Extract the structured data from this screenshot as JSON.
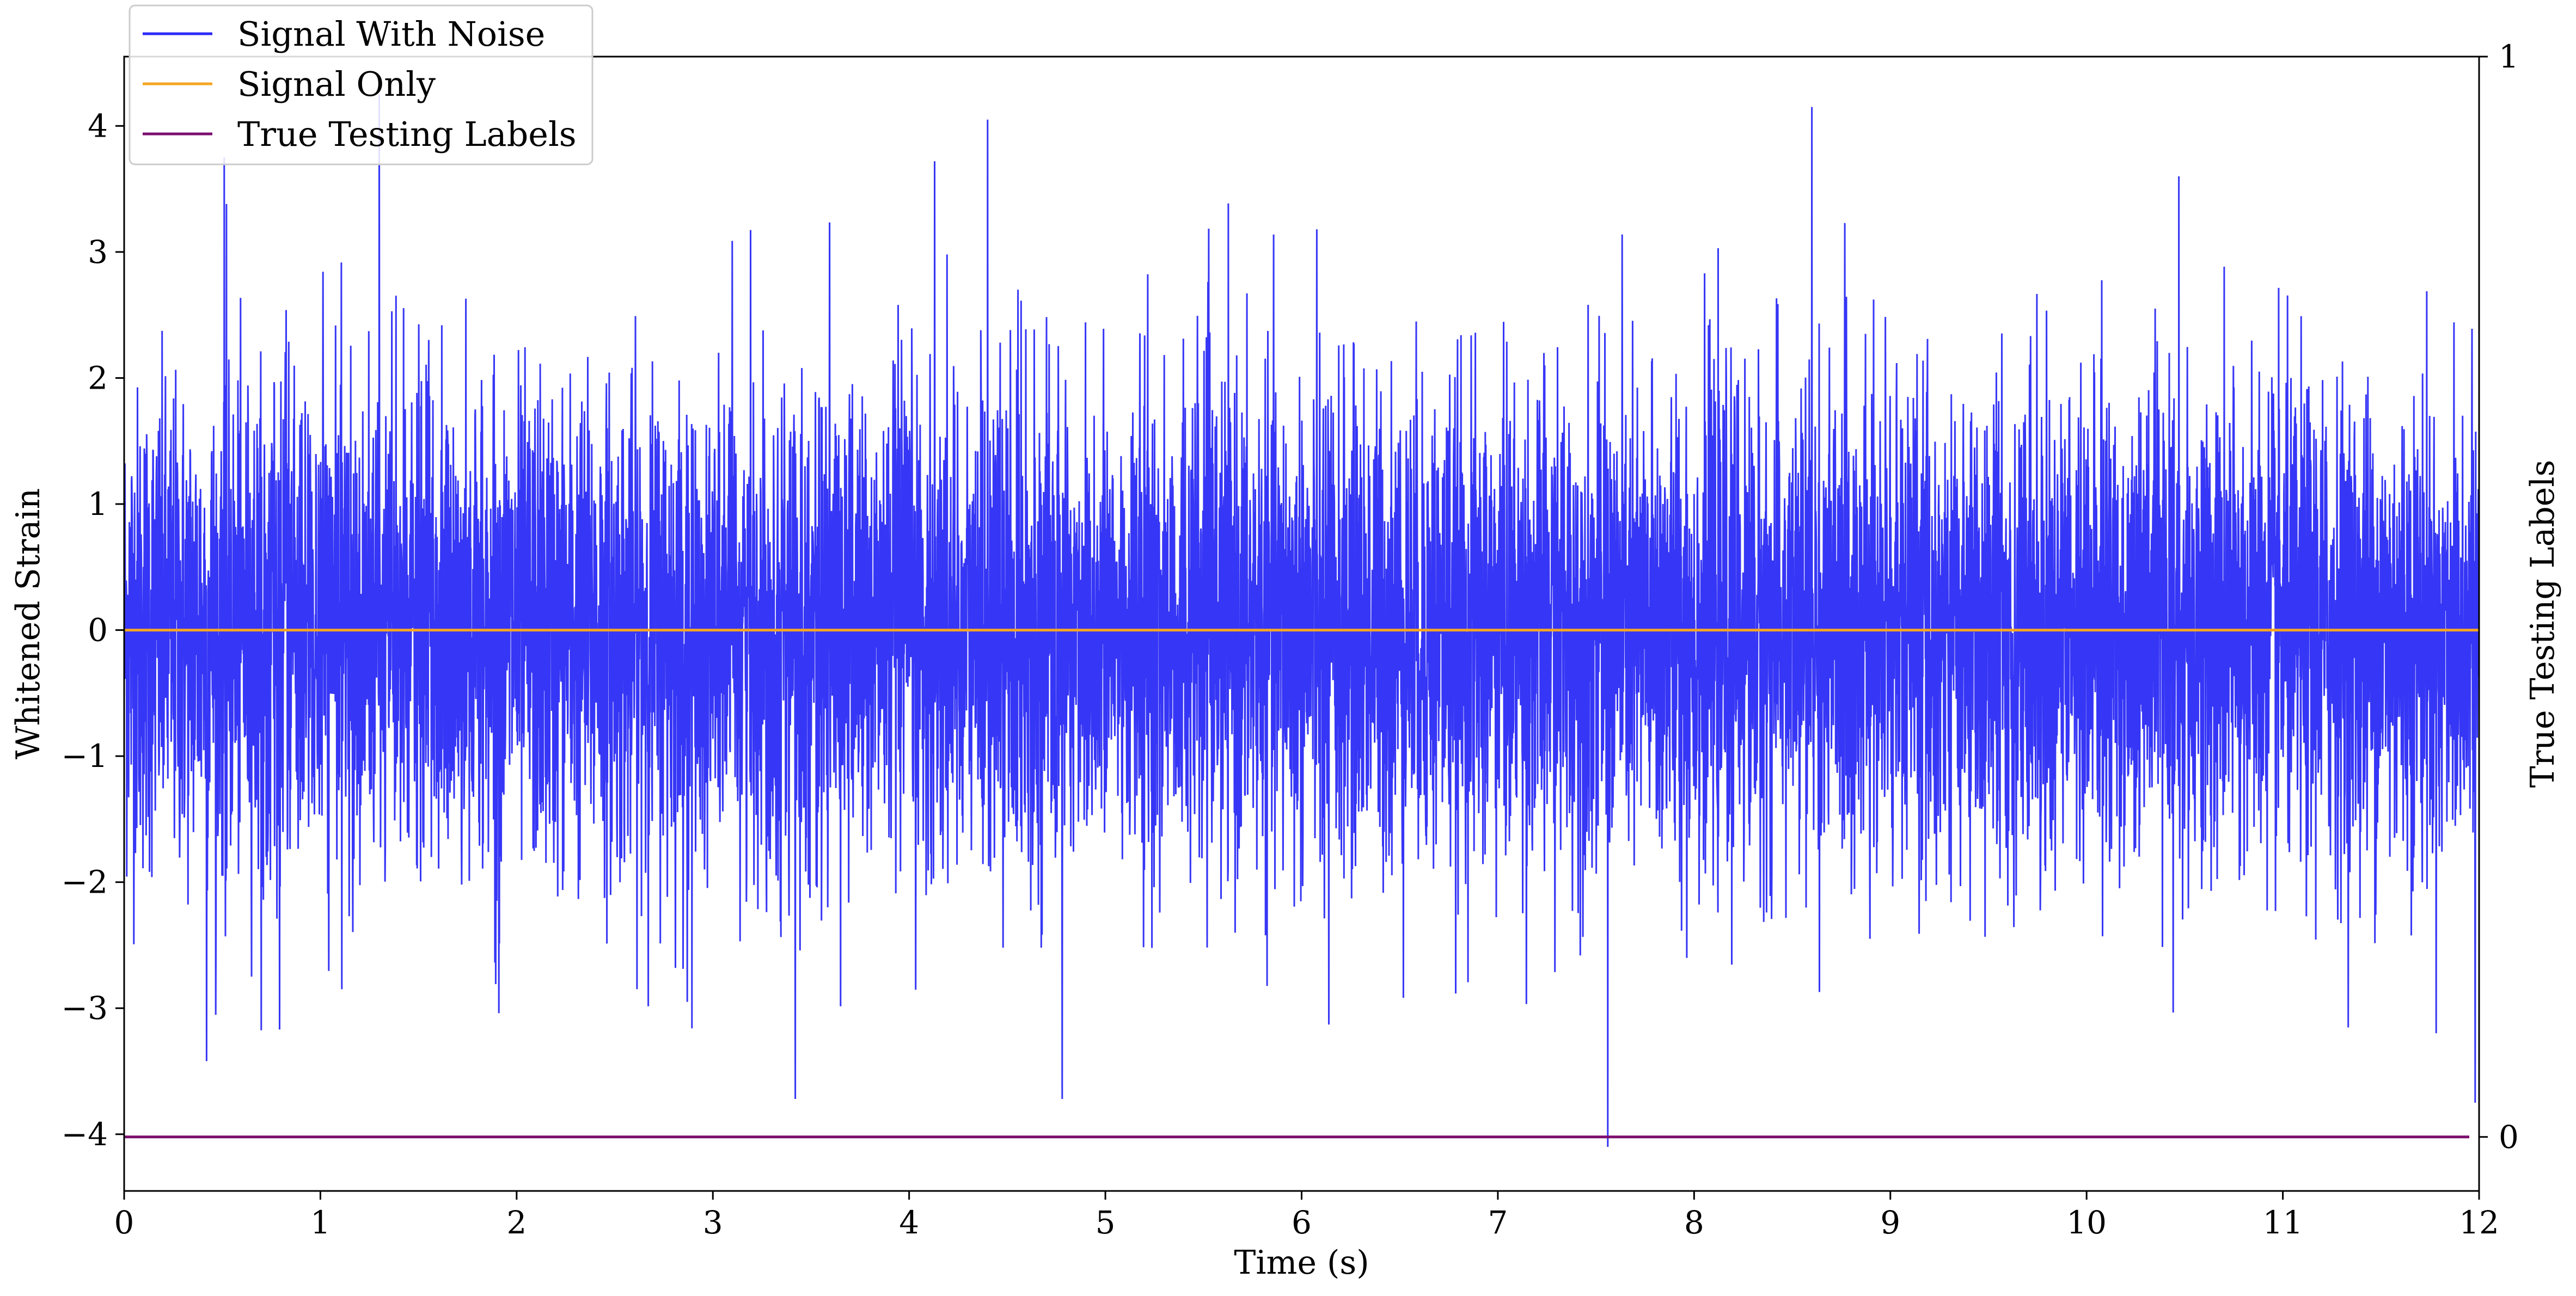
{
  "chart_data": {
    "type": "line",
    "title": "",
    "xlabel": "Time (s)",
    "ylabel": "Whitened Strain",
    "y2label": "True Testing Labels",
    "xlim": [
      0,
      12
    ],
    "ylim": [
      -4.45,
      4.55
    ],
    "y2lim": [
      -0.05,
      1.0
    ],
    "x_ticks": [
      0,
      1,
      2,
      3,
      4,
      5,
      6,
      7,
      8,
      9,
      10,
      11,
      12
    ],
    "y_ticks": [
      -4,
      -3,
      -2,
      -1,
      0,
      1,
      2,
      3,
      4
    ],
    "y_tick_labels": [
      "−4",
      "−3",
      "−2",
      "−1",
      "0",
      "1",
      "2",
      "3",
      "4"
    ],
    "y2_ticks": [
      0,
      1
    ],
    "grid": false,
    "legend_position": "top-left",
    "series": [
      {
        "name": "Signal With Noise",
        "color": "#2b2bf5",
        "axis": "left",
        "description_values": "dense noise approx. Gaussian, envelope roughly -3.5 to 4.1",
        "peaks": [
          {
            "x": 0.51,
            "y": 3.75
          },
          {
            "x": 1.3,
            "y": 4.25
          },
          {
            "x": 4.4,
            "y": 4.05
          },
          {
            "x": 8.6,
            "y": 4.15
          },
          {
            "x": 4.13,
            "y": 3.72
          },
          {
            "x": 10.47,
            "y": 3.6
          }
        ],
        "troughs": [
          {
            "x": 0.42,
            "y": -3.42
          },
          {
            "x": 3.42,
            "y": -3.72
          },
          {
            "x": 4.78,
            "y": -3.72
          },
          {
            "x": 7.56,
            "y": -4.1
          },
          {
            "x": 11.98,
            "y": -3.75
          }
        ]
      },
      {
        "name": "Signal Only",
        "color": "#f5a623",
        "axis": "left",
        "x": [
          0,
          12
        ],
        "y": [
          0,
          0
        ]
      },
      {
        "name": "True Testing Labels",
        "color": "#7b0d6e",
        "axis": "right",
        "x": [
          0,
          11.95
        ],
        "y": [
          0,
          0
        ]
      }
    ]
  }
}
